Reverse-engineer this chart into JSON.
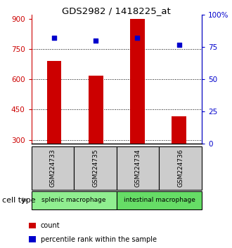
{
  "title": "GDS2982 / 1418225_at",
  "samples": [
    "GSM224733",
    "GSM224735",
    "GSM224734",
    "GSM224736"
  ],
  "counts": [
    690,
    620,
    900,
    415
  ],
  "percentiles": [
    82,
    80,
    82,
    77
  ],
  "bar_color": "#cc0000",
  "dot_color": "#0000cc",
  "ylim_left": [
    280,
    920
  ],
  "ylim_right": [
    0,
    100
  ],
  "yticks_left": [
    300,
    450,
    600,
    750,
    900
  ],
  "yticks_right": [
    0,
    25,
    50,
    75,
    100
  ],
  "ytick_labels_right": [
    "0",
    "25",
    "50",
    "75",
    "100%"
  ],
  "groups": [
    {
      "label": "splenic macrophage",
      "indices": [
        0,
        1
      ],
      "color": "#90ee90"
    },
    {
      "label": "intestinal macrophage",
      "indices": [
        2,
        3
      ],
      "color": "#66dd66"
    }
  ],
  "cell_type_label": "cell type",
  "legend_items": [
    {
      "color": "#cc0000",
      "label": "count"
    },
    {
      "color": "#0000cc",
      "label": "percentile rank within the sample"
    }
  ],
  "background_color": "#ffffff",
  "sample_box_color": "#cccccc"
}
